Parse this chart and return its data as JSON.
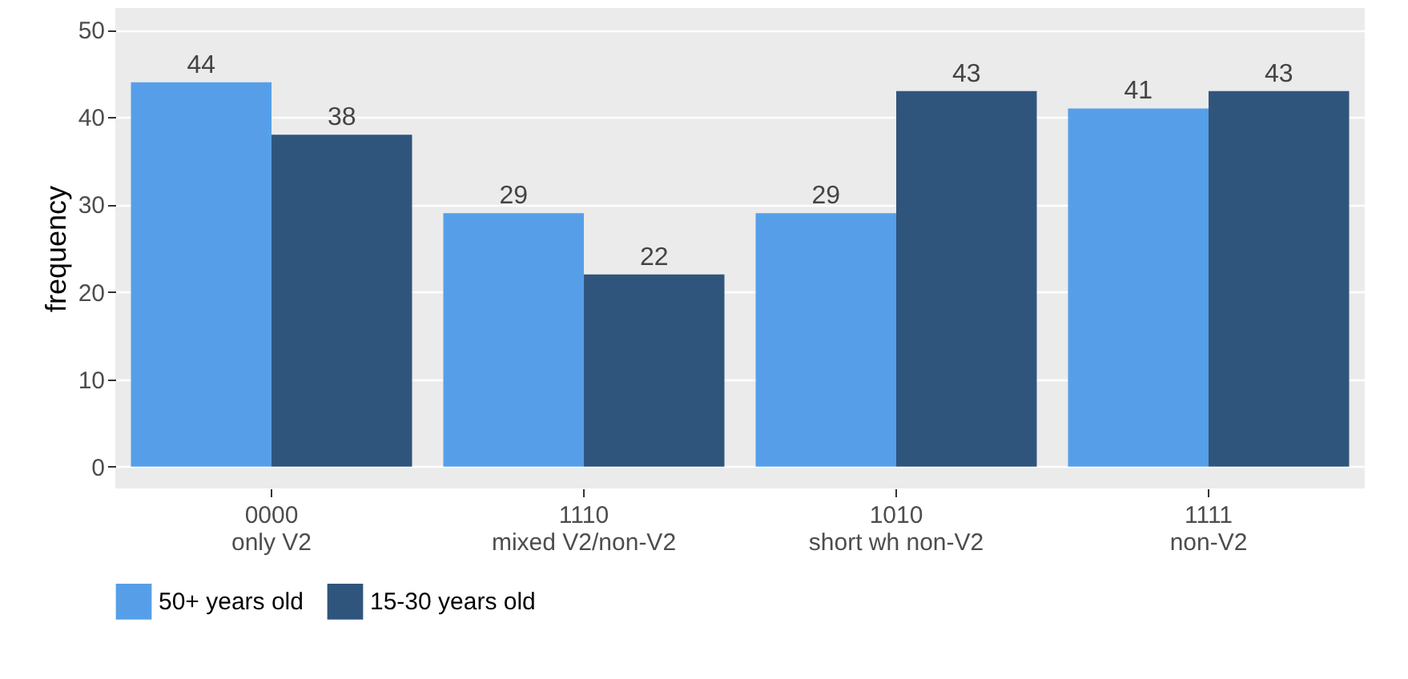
{
  "chart_data": {
    "type": "bar",
    "ylabel": "frequency",
    "categories": [
      "0000\nonly V2",
      "1110\nmixed V2/non-V2",
      "1010\nshort wh non-V2",
      "1111\nnon-V2"
    ],
    "series": [
      {
        "name": "50+ years old",
        "color": "#569fe8",
        "values": [
          44,
          29,
          29,
          41
        ]
      },
      {
        "name": "15-30 years old",
        "color": "#30557d",
        "values": [
          38,
          22,
          43,
          43
        ]
      }
    ],
    "ylim": [
      -2.5,
      52.5
    ],
    "yticks": [
      0,
      10,
      20,
      30,
      40,
      50
    ],
    "grid": true,
    "legend": "bottom",
    "data_labels": true
  }
}
